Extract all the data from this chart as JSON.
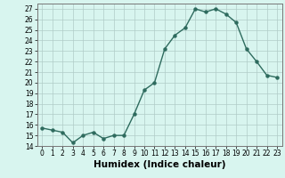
{
  "x": [
    0,
    1,
    2,
    3,
    4,
    5,
    6,
    7,
    8,
    9,
    10,
    11,
    12,
    13,
    14,
    15,
    16,
    17,
    18,
    19,
    20,
    21,
    22,
    23
  ],
  "y": [
    15.7,
    15.5,
    15.3,
    14.3,
    15.0,
    15.3,
    14.7,
    15.0,
    15.0,
    17.0,
    19.3,
    20.0,
    23.2,
    24.5,
    25.2,
    27.0,
    26.7,
    27.0,
    26.5,
    25.7,
    23.2,
    22.0,
    20.7,
    20.5
  ],
  "line_color": "#2e6b5e",
  "marker": "o",
  "marker_size": 2.2,
  "line_width": 1.0,
  "xlabel": "Humidex (Indice chaleur)",
  "ylim": [
    14,
    27.5
  ],
  "xlim": [
    -0.5,
    23.5
  ],
  "yticks": [
    14,
    15,
    16,
    17,
    18,
    19,
    20,
    21,
    22,
    23,
    24,
    25,
    26,
    27
  ],
  "xticks": [
    0,
    1,
    2,
    3,
    4,
    5,
    6,
    7,
    8,
    9,
    10,
    11,
    12,
    13,
    14,
    15,
    16,
    17,
    18,
    19,
    20,
    21,
    22,
    23
  ],
  "bg_color": "#d8f5ef",
  "grid_color": "#b0ccc8",
  "tick_label_fontsize": 5.5,
  "xlabel_fontsize": 7.5
}
